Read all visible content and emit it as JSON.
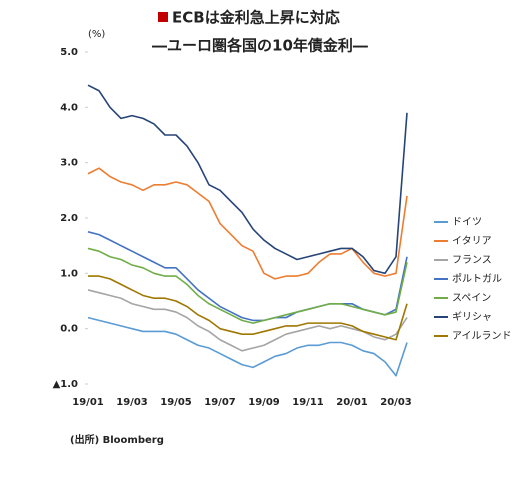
{
  "chart_data": {
    "type": "line",
    "title": "ECBは金利急上昇に対応",
    "subtitle": "―ユーロ圏各国の10年債金利―",
    "y_label": "(%)",
    "source": "(出所) Bloomberg",
    "categories": [
      "19/01",
      null,
      null,
      null,
      "19/03",
      null,
      null,
      null,
      "19/05",
      null,
      null,
      null,
      "19/07",
      null,
      null,
      null,
      "19/09",
      null,
      null,
      null,
      "19/11",
      null,
      null,
      null,
      "20/01",
      null,
      null,
      null,
      "20/03",
      null
    ],
    "ylim": [
      -1,
      5
    ],
    "yticks": [
      {
        "value": 5,
        "label": "5.0"
      },
      {
        "value": 4,
        "label": "4.0"
      },
      {
        "value": 3,
        "label": "3.0"
      },
      {
        "value": 2,
        "label": "2.0"
      },
      {
        "value": 1,
        "label": "1.0"
      },
      {
        "value": 0,
        "label": "0.0"
      },
      {
        "value": -1,
        "label": "▲1.0"
      }
    ],
    "series": [
      {
        "name": "ドイツ",
        "color": "#5b9bd5",
        "values": [
          0.2,
          0.15,
          0.1,
          0.05,
          0.0,
          -0.05,
          -0.05,
          -0.05,
          -0.1,
          -0.2,
          -0.3,
          -0.35,
          -0.45,
          -0.55,
          -0.65,
          -0.7,
          -0.6,
          -0.5,
          -0.45,
          -0.35,
          -0.3,
          -0.3,
          -0.25,
          -0.25,
          -0.3,
          -0.4,
          -0.45,
          -0.6,
          -0.85,
          -0.25
        ]
      },
      {
        "name": "イタリア",
        "color": "#ed7d31",
        "values": [
          2.8,
          2.9,
          2.75,
          2.65,
          2.6,
          2.5,
          2.6,
          2.6,
          2.65,
          2.6,
          2.45,
          2.3,
          1.9,
          1.7,
          1.5,
          1.4,
          1.0,
          0.9,
          0.95,
          0.95,
          1.0,
          1.2,
          1.35,
          1.35,
          1.45,
          1.2,
          1.0,
          0.95,
          1.0,
          2.4
        ]
      },
      {
        "name": "フランス",
        "color": "#a5a5a5",
        "values": [
          0.7,
          0.65,
          0.6,
          0.55,
          0.45,
          0.4,
          0.35,
          0.35,
          0.3,
          0.2,
          0.05,
          -0.05,
          -0.2,
          -0.3,
          -0.4,
          -0.35,
          -0.3,
          -0.2,
          -0.1,
          -0.05,
          0.0,
          0.05,
          0.0,
          0.05,
          0.0,
          -0.05,
          -0.15,
          -0.2,
          -0.1,
          0.2
        ]
      },
      {
        "name": "ポルトガル",
        "color": "#4472c4",
        "values": [
          1.75,
          1.7,
          1.6,
          1.5,
          1.4,
          1.3,
          1.2,
          1.1,
          1.1,
          0.9,
          0.7,
          0.55,
          0.4,
          0.3,
          0.2,
          0.15,
          0.15,
          0.2,
          0.2,
          0.3,
          0.35,
          0.4,
          0.45,
          0.45,
          0.45,
          0.35,
          0.3,
          0.25,
          0.35,
          1.3
        ]
      },
      {
        "name": "スペイン",
        "color": "#70ad47",
        "values": [
          1.45,
          1.4,
          1.3,
          1.25,
          1.15,
          1.1,
          1.0,
          0.95,
          0.95,
          0.8,
          0.6,
          0.45,
          0.35,
          0.25,
          0.15,
          0.1,
          0.15,
          0.2,
          0.25,
          0.3,
          0.35,
          0.4,
          0.45,
          0.45,
          0.4,
          0.35,
          0.3,
          0.25,
          0.3,
          1.2
        ]
      },
      {
        "name": "ギリシャ",
        "color": "#264478",
        "values": [
          4.4,
          4.3,
          4.0,
          3.8,
          3.85,
          3.8,
          3.7,
          3.5,
          3.5,
          3.3,
          3.0,
          2.6,
          2.5,
          2.3,
          2.1,
          1.8,
          1.6,
          1.45,
          1.35,
          1.25,
          1.3,
          1.35,
          1.4,
          1.45,
          1.45,
          1.3,
          1.05,
          1.0,
          1.3,
          3.9
        ]
      },
      {
        "name": "アイルランド",
        "color": "#9e7800",
        "values": [
          0.95,
          0.95,
          0.9,
          0.8,
          0.7,
          0.6,
          0.55,
          0.55,
          0.5,
          0.4,
          0.25,
          0.15,
          0.0,
          -0.05,
          -0.1,
          -0.1,
          -0.05,
          0.0,
          0.05,
          0.05,
          0.1,
          0.1,
          0.1,
          0.1,
          0.05,
          -0.05,
          -0.1,
          -0.15,
          -0.2,
          0.45
        ]
      }
    ]
  }
}
